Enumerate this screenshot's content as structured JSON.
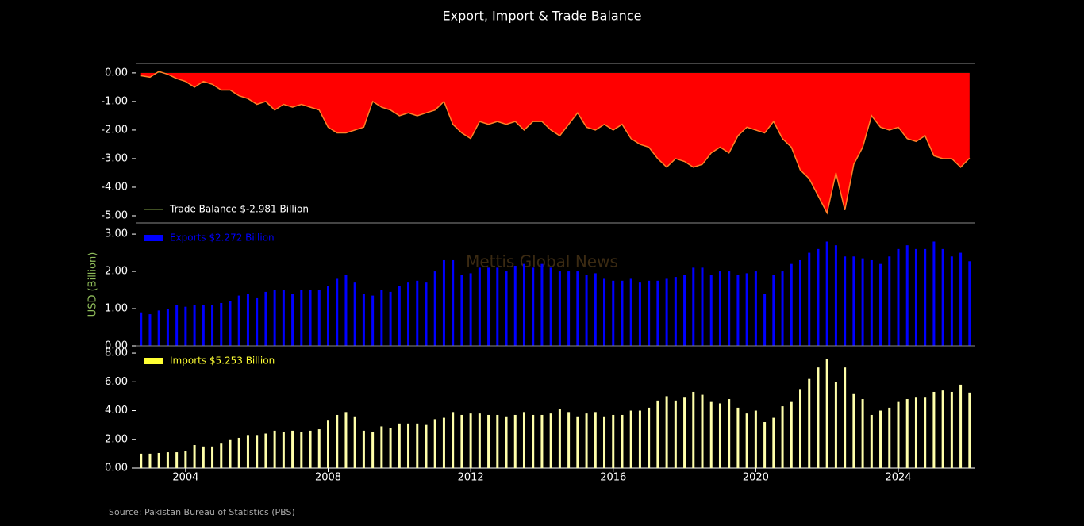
{
  "title": "Export, Import & Trade Balance",
  "source": "Source: Pakistan Bureau of Statistics (PBS)",
  "watermark": "Mettis Global News",
  "chart_data": [
    {
      "type": "area",
      "x": [
        2002.75,
        2003,
        2003.25,
        2003.5,
        2003.75,
        2004,
        2004.25,
        2004.5,
        2004.75,
        2005,
        2005.25,
        2005.5,
        2005.75,
        2006,
        2006.25,
        2006.5,
        2006.75,
        2007,
        2007.25,
        2007.5,
        2007.75,
        2008,
        2008.25,
        2008.5,
        2008.75,
        2009,
        2009.25,
        2009.5,
        2009.75,
        2010,
        2010.25,
        2010.5,
        2010.75,
        2011,
        2011.25,
        2011.5,
        2011.75,
        2012,
        2012.25,
        2012.5,
        2012.75,
        2013,
        2013.25,
        2013.5,
        2013.75,
        2014,
        2014.25,
        2014.5,
        2014.75,
        2015,
        2015.25,
        2015.5,
        2015.75,
        2016,
        2016.25,
        2016.5,
        2016.75,
        2017,
        2017.25,
        2017.5,
        2017.75,
        2018,
        2018.25,
        2018.5,
        2018.75,
        2019,
        2019.25,
        2019.5,
        2019.75,
        2020,
        2020.25,
        2020.5,
        2020.75,
        2021,
        2021.25,
        2021.5,
        2021.75,
        2022,
        2022.25,
        2022.5,
        2022.75,
        2023,
        2023.25,
        2023.5,
        2023.75,
        2024,
        2024.25,
        2024.5,
        2024.75,
        2025,
        2025.25,
        2025.5,
        2025.75,
        2026
      ],
      "series": [
        {
          "name": "Trade Balance $-2.981 Billion",
          "color": "#ff0000",
          "line_color": "#ff7f27",
          "positive_color": "#2ca02c",
          "legend_color": "#556b2f",
          "values": [
            -0.1,
            -0.15,
            0.05,
            -0.05,
            -0.2,
            -0.3,
            -0.5,
            -0.3,
            -0.4,
            -0.6,
            -0.6,
            -0.8,
            -0.9,
            -1.1,
            -1.0,
            -1.3,
            -1.1,
            -1.2,
            -1.1,
            -1.2,
            -1.3,
            -1.9,
            -2.1,
            -2.1,
            -2.0,
            -1.9,
            -1.0,
            -1.2,
            -1.3,
            -1.5,
            -1.4,
            -1.5,
            -1.4,
            -1.3,
            -1.0,
            -1.8,
            -2.1,
            -2.3,
            -1.7,
            -1.8,
            -1.7,
            -1.8,
            -1.7,
            -2.0,
            -1.7,
            -1.7,
            -2.0,
            -2.2,
            -1.8,
            -1.4,
            -1.9,
            -2.0,
            -1.8,
            -2.0,
            -1.8,
            -2.3,
            -2.5,
            -2.6,
            -3.0,
            -3.3,
            -3.0,
            -3.1,
            -3.3,
            -3.2,
            -2.8,
            -2.6,
            -2.8,
            -2.2,
            -1.9,
            -2.0,
            -2.1,
            -1.7,
            -2.3,
            -2.6,
            -3.4,
            -3.7,
            -4.3,
            -4.9,
            -3.5,
            -4.8,
            -3.2,
            -2.6,
            -1.5,
            -1.9,
            -2.0,
            -1.9,
            -2.3,
            -2.4,
            -2.2,
            -2.9,
            -3.0,
            -3.0,
            -3.3,
            -2.98
          ]
        }
      ],
      "xlim": [
        2002.6,
        2026.16
      ],
      "ylim": [
        -5.25,
        0.33
      ],
      "yticks": [
        {
          "value": 0,
          "label": "0.00"
        },
        {
          "value": -1,
          "label": "-1.00"
        },
        {
          "value": -2,
          "label": "-2.00"
        },
        {
          "value": -3,
          "label": "-3.00"
        },
        {
          "value": -4,
          "label": "-4.00"
        },
        {
          "value": -5,
          "label": "-5.00"
        }
      ],
      "legend": "lower left",
      "legend_text_color": "#ffffff"
    },
    {
      "type": "bar",
      "ylabel": "USD (Billion)",
      "x": [
        2002.75,
        2003,
        2003.25,
        2003.5,
        2003.75,
        2004,
        2004.25,
        2004.5,
        2004.75,
        2005,
        2005.25,
        2005.5,
        2005.75,
        2006,
        2006.25,
        2006.5,
        2006.75,
        2007,
        2007.25,
        2007.5,
        2007.75,
        2008,
        2008.25,
        2008.5,
        2008.75,
        2009,
        2009.25,
        2009.5,
        2009.75,
        2010,
        2010.25,
        2010.5,
        2010.75,
        2011,
        2011.25,
        2011.5,
        2011.75,
        2012,
        2012.25,
        2012.5,
        2012.75,
        2013,
        2013.25,
        2013.5,
        2013.75,
        2014,
        2014.25,
        2014.5,
        2014.75,
        2015,
        2015.25,
        2015.5,
        2015.75,
        2016,
        2016.25,
        2016.5,
        2016.75,
        2017,
        2017.25,
        2017.5,
        2017.75,
        2018,
        2018.25,
        2018.5,
        2018.75,
        2019,
        2019.25,
        2019.5,
        2019.75,
        2020,
        2020.25,
        2020.5,
        2020.75,
        2021,
        2021.25,
        2021.5,
        2021.75,
        2022,
        2022.25,
        2022.5,
        2022.75,
        2023,
        2023.25,
        2023.5,
        2023.75,
        2024,
        2024.25,
        2024.5,
        2024.75,
        2025,
        2025.25,
        2025.5,
        2025.75,
        2026
      ],
      "series": [
        {
          "name": "Exports $2.272 Billion",
          "color": "#0000ff",
          "legend_text_color": "#0000ff",
          "values": [
            0.9,
            0.85,
            0.95,
            1.0,
            1.1,
            1.05,
            1.1,
            1.1,
            1.1,
            1.15,
            1.2,
            1.35,
            1.4,
            1.3,
            1.45,
            1.5,
            1.5,
            1.4,
            1.5,
            1.5,
            1.5,
            1.6,
            1.8,
            1.9,
            1.7,
            1.4,
            1.35,
            1.5,
            1.45,
            1.6,
            1.7,
            1.75,
            1.7,
            2.0,
            2.3,
            2.3,
            1.9,
            1.95,
            2.1,
            2.1,
            2.1,
            2.0,
            2.15,
            2.2,
            2.1,
            2.2,
            2.1,
            2.0,
            2.0,
            2.0,
            1.9,
            1.95,
            1.8,
            1.75,
            1.75,
            1.8,
            1.7,
            1.75,
            1.75,
            1.8,
            1.85,
            1.9,
            2.1,
            2.1,
            1.9,
            2.0,
            2.0,
            1.9,
            1.95,
            2.0,
            1.4,
            1.9,
            2.0,
            2.2,
            2.3,
            2.5,
            2.6,
            2.8,
            2.7,
            2.4,
            2.4,
            2.35,
            2.3,
            2.2,
            2.4,
            2.6,
            2.7,
            2.6,
            2.6,
            2.8,
            2.6,
            2.4,
            2.5,
            2.272
          ]
        }
      ],
      "xlim": [
        2002.6,
        2026.16
      ],
      "ylim": [
        0,
        3.3
      ],
      "yticks": [
        {
          "value": 0,
          "label": "0.00"
        },
        {
          "value": 1,
          "label": "1.00"
        },
        {
          "value": 2,
          "label": "2.00"
        },
        {
          "value": 3,
          "label": "3.00"
        }
      ],
      "legend": "upper left"
    },
    {
      "type": "bar",
      "x": [
        2002.75,
        2003,
        2003.25,
        2003.5,
        2003.75,
        2004,
        2004.25,
        2004.5,
        2004.75,
        2005,
        2005.25,
        2005.5,
        2005.75,
        2006,
        2006.25,
        2006.5,
        2006.75,
        2007,
        2007.25,
        2007.5,
        2007.75,
        2008,
        2008.25,
        2008.5,
        2008.75,
        2009,
        2009.25,
        2009.5,
        2009.75,
        2010,
        2010.25,
        2010.5,
        2010.75,
        2011,
        2011.25,
        2011.5,
        2011.75,
        2012,
        2012.25,
        2012.5,
        2012.75,
        2013,
        2013.25,
        2013.5,
        2013.75,
        2014,
        2014.25,
        2014.5,
        2014.75,
        2015,
        2015.25,
        2015.5,
        2015.75,
        2016,
        2016.25,
        2016.5,
        2016.75,
        2017,
        2017.25,
        2017.5,
        2017.75,
        2018,
        2018.25,
        2018.5,
        2018.75,
        2019,
        2019.25,
        2019.5,
        2019.75,
        2020,
        2020.25,
        2020.5,
        2020.75,
        2021,
        2021.25,
        2021.5,
        2021.75,
        2022,
        2022.25,
        2022.5,
        2022.75,
        2023,
        2023.25,
        2023.5,
        2023.75,
        2024,
        2024.25,
        2024.5,
        2024.75,
        2025,
        2025.25,
        2025.5,
        2025.75,
        2026
      ],
      "series": [
        {
          "name": "Imports $5.253 Billion",
          "color": "#ffffaa",
          "legend_color": "#ffff33",
          "legend_text_color": "#ffff33",
          "values": [
            1.0,
            1.0,
            1.05,
            1.1,
            1.1,
            1.2,
            1.6,
            1.5,
            1.5,
            1.7,
            2.0,
            2.1,
            2.3,
            2.3,
            2.4,
            2.6,
            2.5,
            2.6,
            2.5,
            2.6,
            2.7,
            3.3,
            3.7,
            3.9,
            3.6,
            2.6,
            2.5,
            2.9,
            2.8,
            3.1,
            3.1,
            3.1,
            3.0,
            3.4,
            3.5,
            3.9,
            3.7,
            3.8,
            3.8,
            3.7,
            3.7,
            3.6,
            3.7,
            3.9,
            3.7,
            3.7,
            3.8,
            4.1,
            3.9,
            3.6,
            3.8,
            3.9,
            3.6,
            3.7,
            3.7,
            4.0,
            4.0,
            4.2,
            4.7,
            5.0,
            4.7,
            4.9,
            5.3,
            5.1,
            4.6,
            4.5,
            4.8,
            4.2,
            3.8,
            4.0,
            3.2,
            3.5,
            4.3,
            4.6,
            5.5,
            6.2,
            7.0,
            7.6,
            6.0,
            7.0,
            5.2,
            4.8,
            3.7,
            4.0,
            4.2,
            4.6,
            4.8,
            4.9,
            4.9,
            5.3,
            5.4,
            5.3,
            5.8,
            5.253
          ]
        }
      ],
      "xlim": [
        2002.6,
        2026.16
      ],
      "xticks": [
        2004,
        2008,
        2012,
        2016,
        2020,
        2024
      ],
      "ylim": [
        0,
        8.5
      ],
      "yticks": [
        {
          "value": 0,
          "label": "0.00"
        },
        {
          "value": 2,
          "label": "2.00"
        },
        {
          "value": 4,
          "label": "4.00"
        },
        {
          "value": 6,
          "label": "6.00"
        },
        {
          "value": 8,
          "label": "8.00"
        }
      ],
      "legend": "upper left"
    }
  ]
}
